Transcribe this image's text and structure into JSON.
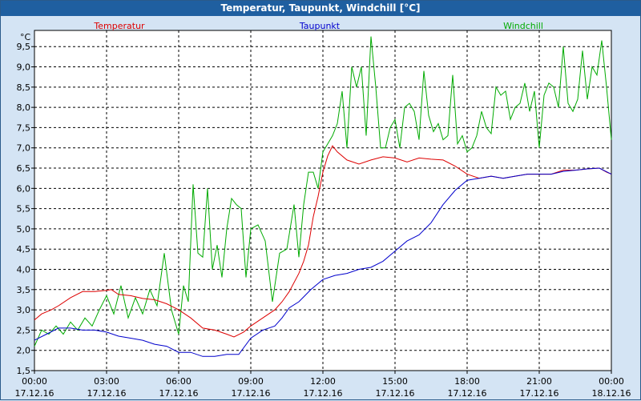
{
  "window_title": "Temperatur, Taupunkt, Windchill [°C]",
  "chart_data": {
    "type": "line",
    "title": "Temperatur, Taupunkt, Windchill [°C]",
    "y_unit_label": "°C",
    "ylim": [
      1.5,
      9.9
    ],
    "y_ticks": [
      "1,5",
      "2,0",
      "2,5",
      "3,0",
      "3,5",
      "4,0",
      "4,5",
      "5,0",
      "5,5",
      "6,0",
      "6,5",
      "7,0",
      "7,5",
      "8,0",
      "8,5",
      "9,0",
      "9,5"
    ],
    "xlim_hours": [
      0,
      24
    ],
    "x_ticks": [
      {
        "time": "00:00",
        "date": "17.12.16"
      },
      {
        "time": "03:00",
        "date": "17.12.16"
      },
      {
        "time": "06:00",
        "date": "17.12.16"
      },
      {
        "time": "09:00",
        "date": "17.12.16"
      },
      {
        "time": "12:00",
        "date": "17.12.16"
      },
      {
        "time": "15:00",
        "date": "17.12.16"
      },
      {
        "time": "18:00",
        "date": "17.12.16"
      },
      {
        "time": "21:00",
        "date": "17.12.16"
      },
      {
        "time": "00:00",
        "date": "18.12.16"
      }
    ],
    "grid": true,
    "legend_position": "top",
    "series": [
      {
        "name": "Temperatur",
        "color": "#dd0000",
        "points": [
          [
            0,
            2.75
          ],
          [
            0.3,
            2.9
          ],
          [
            0.7,
            3.0
          ],
          [
            1,
            3.1
          ],
          [
            1.5,
            3.3
          ],
          [
            2,
            3.45
          ],
          [
            2.5,
            3.45
          ],
          [
            3,
            3.48
          ],
          [
            3.2,
            3.5
          ],
          [
            3.5,
            3.38
          ],
          [
            4,
            3.35
          ],
          [
            4.5,
            3.28
          ],
          [
            5,
            3.25
          ],
          [
            5.5,
            3.15
          ],
          [
            6,
            3.0
          ],
          [
            6.5,
            2.8
          ],
          [
            7,
            2.55
          ],
          [
            7.5,
            2.5
          ],
          [
            8,
            2.4
          ],
          [
            8.3,
            2.33
          ],
          [
            8.7,
            2.45
          ],
          [
            9,
            2.6
          ],
          [
            9.5,
            2.8
          ],
          [
            10,
            3.0
          ],
          [
            10.3,
            3.2
          ],
          [
            10.6,
            3.45
          ],
          [
            11,
            3.9
          ],
          [
            11.2,
            4.2
          ],
          [
            11.4,
            4.6
          ],
          [
            11.6,
            5.3
          ],
          [
            11.8,
            5.8
          ],
          [
            12,
            6.4
          ],
          [
            12.2,
            6.8
          ],
          [
            12.4,
            7.05
          ],
          [
            12.6,
            6.9
          ],
          [
            13,
            6.7
          ],
          [
            13.5,
            6.6
          ],
          [
            14,
            6.7
          ],
          [
            14.5,
            6.78
          ],
          [
            15,
            6.75
          ],
          [
            15.5,
            6.65
          ],
          [
            16,
            6.75
          ],
          [
            16.5,
            6.72
          ],
          [
            17,
            6.7
          ],
          [
            17.5,
            6.55
          ],
          [
            18,
            6.35
          ],
          [
            18.5,
            6.25
          ],
          [
            19,
            6.3
          ],
          [
            19.5,
            6.25
          ],
          [
            20,
            6.3
          ],
          [
            20.5,
            6.35
          ],
          [
            21,
            6.35
          ],
          [
            21.5,
            6.35
          ],
          [
            22,
            6.45
          ],
          [
            22.5,
            6.45
          ],
          [
            23,
            6.48
          ],
          [
            23.5,
            6.5
          ],
          [
            23.8,
            6.4
          ],
          [
            24,
            6.35
          ]
        ]
      },
      {
        "name": "Taupunkt",
        "color": "#0000cc",
        "points": [
          [
            0,
            2.25
          ],
          [
            0.5,
            2.4
          ],
          [
            1,
            2.55
          ],
          [
            1.5,
            2.55
          ],
          [
            2,
            2.5
          ],
          [
            2.5,
            2.5
          ],
          [
            3,
            2.45
          ],
          [
            3.5,
            2.35
          ],
          [
            4,
            2.3
          ],
          [
            4.5,
            2.25
          ],
          [
            5,
            2.15
          ],
          [
            5.5,
            2.1
          ],
          [
            6,
            1.95
          ],
          [
            6.5,
            1.95
          ],
          [
            7,
            1.85
          ],
          [
            7.5,
            1.85
          ],
          [
            8,
            1.9
          ],
          [
            8.5,
            1.9
          ],
          [
            9,
            2.3
          ],
          [
            9.5,
            2.5
          ],
          [
            10,
            2.6
          ],
          [
            10.3,
            2.8
          ],
          [
            10.6,
            3.05
          ],
          [
            11,
            3.2
          ],
          [
            11.5,
            3.5
          ],
          [
            12,
            3.75
          ],
          [
            12.5,
            3.85
          ],
          [
            13,
            3.9
          ],
          [
            13.5,
            4.0
          ],
          [
            14,
            4.05
          ],
          [
            14.5,
            4.2
          ],
          [
            15,
            4.45
          ],
          [
            15.5,
            4.7
          ],
          [
            16,
            4.85
          ],
          [
            16.5,
            5.15
          ],
          [
            17,
            5.6
          ],
          [
            17.5,
            5.95
          ],
          [
            18,
            6.2
          ],
          [
            18.5,
            6.25
          ],
          [
            19,
            6.3
          ],
          [
            19.5,
            6.25
          ],
          [
            20,
            6.3
          ],
          [
            20.5,
            6.35
          ],
          [
            21,
            6.35
          ],
          [
            21.5,
            6.35
          ],
          [
            22,
            6.42
          ],
          [
            22.5,
            6.45
          ],
          [
            23,
            6.48
          ],
          [
            23.5,
            6.5
          ],
          [
            24,
            6.35
          ]
        ]
      },
      {
        "name": "Windchill",
        "color": "#00aa00",
        "points": [
          [
            0,
            2.1
          ],
          [
            0.3,
            2.5
          ],
          [
            0.6,
            2.4
          ],
          [
            0.9,
            2.6
          ],
          [
            1.2,
            2.4
          ],
          [
            1.5,
            2.7
          ],
          [
            1.8,
            2.5
          ],
          [
            2.1,
            2.8
          ],
          [
            2.4,
            2.6
          ],
          [
            2.7,
            3.0
          ],
          [
            3,
            3.35
          ],
          [
            3.3,
            2.9
          ],
          [
            3.6,
            3.6
          ],
          [
            3.9,
            2.8
          ],
          [
            4.2,
            3.3
          ],
          [
            4.5,
            2.9
          ],
          [
            4.8,
            3.5
          ],
          [
            5.1,
            3.1
          ],
          [
            5.4,
            4.4
          ],
          [
            5.7,
            3.0
          ],
          [
            6,
            2.4
          ],
          [
            6.2,
            3.6
          ],
          [
            6.4,
            3.2
          ],
          [
            6.6,
            6.1
          ],
          [
            6.8,
            4.4
          ],
          [
            7,
            4.3
          ],
          [
            7.2,
            6.0
          ],
          [
            7.4,
            4.0
          ],
          [
            7.6,
            4.6
          ],
          [
            7.8,
            3.8
          ],
          [
            8,
            5.0
          ],
          [
            8.2,
            5.75
          ],
          [
            8.4,
            5.6
          ],
          [
            8.6,
            5.5
          ],
          [
            8.8,
            3.8
          ],
          [
            9,
            5.0
          ],
          [
            9.3,
            5.1
          ],
          [
            9.6,
            4.7
          ],
          [
            9.9,
            3.2
          ],
          [
            10.2,
            4.4
          ],
          [
            10.5,
            4.5
          ],
          [
            10.8,
            5.6
          ],
          [
            11,
            4.3
          ],
          [
            11.2,
            5.6
          ],
          [
            11.4,
            6.4
          ],
          [
            11.6,
            6.4
          ],
          [
            11.8,
            6.0
          ],
          [
            12,
            6.9
          ],
          [
            12.2,
            7.1
          ],
          [
            12.4,
            7.3
          ],
          [
            12.6,
            7.6
          ],
          [
            12.8,
            8.4
          ],
          [
            13,
            7.0
          ],
          [
            13.2,
            9.0
          ],
          [
            13.4,
            8.5
          ],
          [
            13.6,
            9.0
          ],
          [
            13.8,
            7.3
          ],
          [
            14,
            9.75
          ],
          [
            14.2,
            8.5
          ],
          [
            14.4,
            7.0
          ],
          [
            14.6,
            7.0
          ],
          [
            14.8,
            7.5
          ],
          [
            15,
            7.7
          ],
          [
            15.2,
            7.0
          ],
          [
            15.4,
            8.0
          ],
          [
            15.6,
            8.1
          ],
          [
            15.8,
            7.9
          ],
          [
            16,
            7.2
          ],
          [
            16.2,
            8.9
          ],
          [
            16.4,
            7.8
          ],
          [
            16.6,
            7.4
          ],
          [
            16.8,
            7.6
          ],
          [
            17,
            7.2
          ],
          [
            17.2,
            7.3
          ],
          [
            17.4,
            8.8
          ],
          [
            17.6,
            7.1
          ],
          [
            17.8,
            7.3
          ],
          [
            18,
            6.9
          ],
          [
            18.2,
            7.0
          ],
          [
            18.4,
            7.3
          ],
          [
            18.6,
            7.9
          ],
          [
            18.8,
            7.5
          ],
          [
            19,
            7.35
          ],
          [
            19.2,
            8.5
          ],
          [
            19.4,
            8.3
          ],
          [
            19.6,
            8.4
          ],
          [
            19.8,
            7.7
          ],
          [
            20,
            8.0
          ],
          [
            20.2,
            8.1
          ],
          [
            20.4,
            8.6
          ],
          [
            20.6,
            7.9
          ],
          [
            20.8,
            8.4
          ],
          [
            21,
            7.0
          ],
          [
            21.2,
            8.3
          ],
          [
            21.4,
            8.6
          ],
          [
            21.6,
            8.5
          ],
          [
            21.8,
            8.0
          ],
          [
            22,
            9.5
          ],
          [
            22.2,
            8.1
          ],
          [
            22.4,
            7.9
          ],
          [
            22.6,
            8.2
          ],
          [
            22.8,
            9.4
          ],
          [
            23,
            8.2
          ],
          [
            23.2,
            9.0
          ],
          [
            23.4,
            8.8
          ],
          [
            23.6,
            9.65
          ],
          [
            23.8,
            8.5
          ],
          [
            24,
            7.2
          ]
        ]
      }
    ]
  }
}
